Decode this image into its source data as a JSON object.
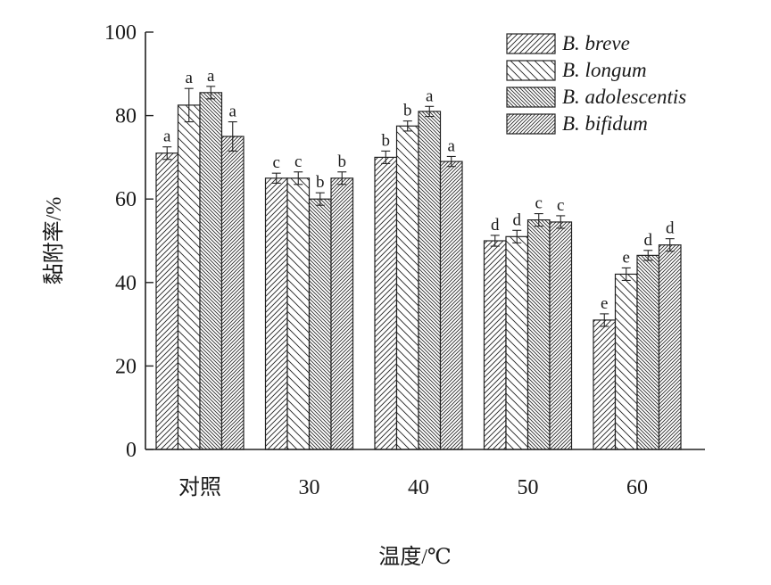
{
  "chart_data": {
    "type": "bar",
    "xlabel": "温度/℃",
    "ylabel": "黏附率/%",
    "ylim": [
      0,
      100
    ],
    "yticks": [
      0,
      20,
      40,
      60,
      80,
      100
    ],
    "categories": [
      "对照",
      "30",
      "40",
      "50",
      "60"
    ],
    "legend_position": "top-right",
    "grid": false,
    "series": [
      {
        "name": "B. breve",
        "pattern": "hatch-right",
        "values": [
          71,
          65,
          70,
          50,
          31
        ],
        "errors": [
          1.5,
          1.2,
          1.5,
          1.3,
          1.5
        ],
        "labels": [
          "a",
          "c",
          "b",
          "d",
          "e"
        ]
      },
      {
        "name": "B. longum",
        "pattern": "hatch-left",
        "values": [
          82.5,
          65,
          77.5,
          51,
          42
        ],
        "errors": [
          4,
          1.5,
          1.2,
          1.5,
          1.5
        ],
        "labels": [
          "a",
          "c",
          "b",
          "d",
          "e"
        ]
      },
      {
        "name": "B. adolescentis",
        "pattern": "hatch-left-dense",
        "values": [
          85.5,
          60,
          81,
          55,
          46.5
        ],
        "errors": [
          1.5,
          1.5,
          1.2,
          1.5,
          1.2
        ],
        "labels": [
          "a",
          "b",
          "a",
          "c",
          "d"
        ]
      },
      {
        "name": "B. bifidum",
        "pattern": "hatch-right-dense",
        "values": [
          75,
          65,
          69,
          54.5,
          49
        ],
        "errors": [
          3.5,
          1.5,
          1.2,
          1.5,
          1.5
        ],
        "labels": [
          "a",
          "b",
          "a",
          "c",
          "d"
        ]
      }
    ]
  }
}
